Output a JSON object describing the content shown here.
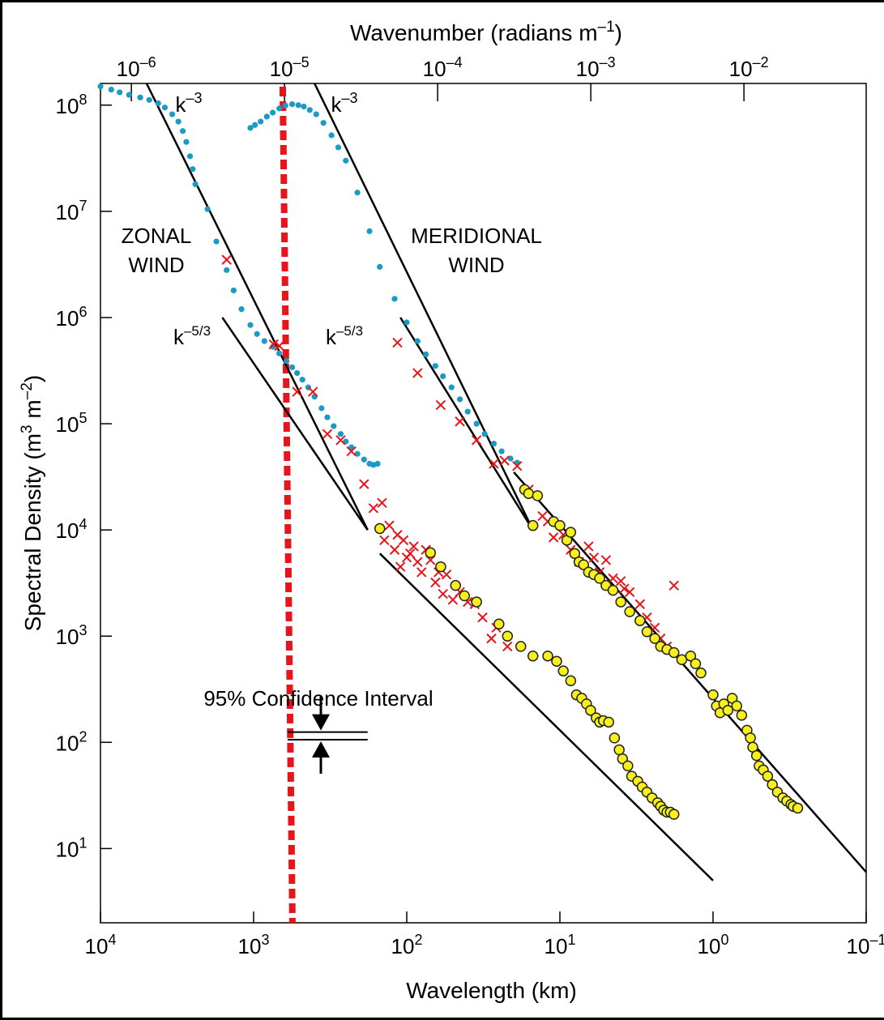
{
  "chart_data": {
    "type": "scatter",
    "title": "",
    "xlabel": "Wavelength (km)",
    "x2label": "Wavenumber (radians m–1)",
    "ylabel": "Spectral Density (m3 m–2)",
    "x_scale": "log (reversed)",
    "y_scale": "log",
    "xlim_km": [
      10000,
      0.1
    ],
    "ylim": [
      2,
      160000000
    ],
    "grid": false,
    "x_ticks": [
      {
        "v": 10000,
        "base": "10",
        "exp": "4"
      },
      {
        "v": 1000,
        "base": "10",
        "exp": "3"
      },
      {
        "v": 100,
        "base": "10",
        "exp": "2"
      },
      {
        "v": 10,
        "base": "10",
        "exp": "1"
      },
      {
        "v": 1,
        "base": "10",
        "exp": "0"
      },
      {
        "v": 0.1,
        "base": "10",
        "exp": "–1"
      }
    ],
    "x2_ticks": [
      {
        "k": 1e-06,
        "base": "10",
        "exp": "–6"
      },
      {
        "k": 1e-05,
        "base": "10",
        "exp": "–5"
      },
      {
        "k": 0.0001,
        "base": "10",
        "exp": "–4"
      },
      {
        "k": 0.001,
        "base": "10",
        "exp": "–3"
      },
      {
        "k": 0.01,
        "base": "10",
        "exp": "–2"
      }
    ],
    "y_ticks": [
      {
        "v": 10,
        "base": "10",
        "exp": "1"
      },
      {
        "v": 100,
        "base": "10",
        "exp": "2"
      },
      {
        "v": 1000,
        "base": "10",
        "exp": "3"
      },
      {
        "v": 10000,
        "base": "10",
        "exp": "4"
      },
      {
        "v": 100000,
        "base": "10",
        "exp": "5"
      },
      {
        "v": 1000000,
        "base": "10",
        "exp": "6"
      },
      {
        "v": 10000000,
        "base": "10",
        "exp": "7"
      },
      {
        "v": 100000000,
        "base": "10",
        "exp": "8"
      }
    ],
    "labels": {
      "zonal": [
        "ZONAL",
        "WIND"
      ],
      "meridional": [
        "MERIDIONAL",
        "WIND"
      ],
      "k3": {
        "base": "k",
        "exp": "–3"
      },
      "k53": {
        "base": "k",
        "exp": "–5/3"
      },
      "confidence": "95% Confidence Interval"
    },
    "reference_line_km": 600,
    "reference_line_color": "#e8141b",
    "fit_lines": [
      {
        "name": "zonal k-3",
        "points": [
          [
            5000,
            160000000
          ],
          [
            180,
            10000
          ]
        ]
      },
      {
        "name": "zonal k-5/3",
        "points": [
          [
            1600,
            1000000
          ],
          [
            180,
            10000
          ]
        ]
      },
      {
        "name": "zonal small-scale",
        "points": [
          [
            150,
            6000
          ],
          [
            1,
            5
          ]
        ]
      },
      {
        "name": "meridional k-3",
        "points": [
          [
            400,
            160000000
          ],
          [
            15,
            10000
          ]
        ]
      },
      {
        "name": "meridional k-5/3",
        "points": [
          [
            110,
            1000000
          ],
          [
            15,
            10000
          ]
        ]
      },
      {
        "name": "meridional small-scale",
        "points": [
          [
            20,
            35000
          ],
          [
            0.1,
            6
          ]
        ]
      }
    ],
    "confidence_interval": {
      "km": [
        600,
        180
      ],
      "values": [
        125,
        106
      ]
    },
    "colors": {
      "blue": "#1a9ac4",
      "red": "#e8141b",
      "yellow": "#f7f01a",
      "line": "#000000"
    },
    "series": [
      {
        "marker": "dot",
        "color": "#1a9ac4",
        "points": [
          [
            10000,
            150000000
          ],
          [
            8500,
            140000000
          ],
          [
            7500,
            132000000
          ],
          [
            6500,
            125000000
          ],
          [
            5500,
            118000000
          ],
          [
            4800,
            112000000
          ],
          [
            4200,
            104000000
          ],
          [
            3800,
            95000000
          ],
          [
            3400,
            82000000
          ],
          [
            3100,
            70000000
          ],
          [
            2900,
            57000000
          ],
          [
            2750,
            45000000
          ],
          [
            2600,
            33000000
          ],
          [
            2500,
            25000000
          ],
          [
            2400,
            18000000
          ],
          [
            2000,
            10500000
          ],
          [
            1750,
            5200000
          ],
          [
            1500,
            2800000
          ],
          [
            1350,
            1800000
          ],
          [
            1200,
            1200000
          ],
          [
            1050,
            850000
          ],
          [
            950,
            700000
          ],
          [
            850,
            600000
          ],
          [
            750,
            530000
          ],
          [
            680,
            460000
          ],
          [
            610,
            390000
          ],
          [
            560,
            340000
          ],
          [
            520,
            300000
          ],
          [
            480,
            260000
          ],
          [
            440,
            220000
          ],
          [
            400,
            180000
          ],
          [
            360,
            140000
          ],
          [
            330,
            115000
          ],
          [
            300,
            95000
          ],
          [
            270,
            80000
          ],
          [
            250,
            68000
          ],
          [
            230,
            60000
          ],
          [
            210,
            52000
          ],
          [
            190,
            46000
          ],
          [
            175,
            42000
          ],
          [
            165,
            41000
          ],
          [
            155,
            42000
          ]
        ]
      },
      {
        "marker": "dot",
        "color": "#1a9ac4",
        "points": [
          [
            1050,
            61000000
          ],
          [
            980,
            65000000
          ],
          [
            900,
            70000000
          ],
          [
            820,
            78000000
          ],
          [
            750,
            85000000
          ],
          [
            680,
            93000000
          ],
          [
            620,
            99000000
          ],
          [
            560,
            102000000
          ],
          [
            510,
            100000000
          ],
          [
            470,
            97000000
          ],
          [
            430,
            90000000
          ],
          [
            390,
            82000000
          ],
          [
            350,
            68000000
          ],
          [
            310,
            52000000
          ],
          [
            280,
            40000000
          ],
          [
            250,
            30000000
          ],
          [
            210,
            15000000
          ],
          [
            175,
            6500000
          ],
          [
            150,
            3000000
          ],
          [
            120,
            1500000
          ],
          [
            100,
            900000
          ],
          [
            85,
            600000
          ],
          [
            75,
            450000
          ],
          [
            65,
            350000
          ],
          [
            58,
            280000
          ],
          [
            51,
            220000
          ],
          [
            45,
            170000
          ],
          [
            40,
            130000
          ],
          [
            35,
            100000
          ],
          [
            31,
            80000
          ],
          [
            27,
            65000
          ],
          [
            24,
            55000
          ],
          [
            21,
            47000
          ],
          [
            19,
            43000
          ]
        ]
      },
      {
        "marker": "x",
        "color": "#e8141b",
        "points": [
          [
            1500,
            3500000
          ],
          [
            740,
            560000
          ],
          [
            680,
            540000
          ],
          [
            520,
            200000
          ],
          [
            410,
            200000
          ],
          [
            330,
            80000
          ],
          [
            270,
            70000
          ],
          [
            230,
            55000
          ],
          [
            190,
            27000
          ],
          [
            165,
            16000
          ],
          [
            145,
            18000
          ],
          [
            130,
            11000
          ],
          [
            115,
            9000
          ],
          [
            105,
            8000
          ],
          [
            95,
            6000
          ],
          [
            90,
            7000
          ],
          [
            85,
            5000
          ],
          [
            80,
            4000
          ],
          [
            75,
            6500
          ],
          [
            70,
            5200
          ],
          [
            65,
            3200
          ],
          [
            62,
            4000
          ],
          [
            58,
            2500
          ],
          [
            55,
            3800
          ],
          [
            50,
            2200
          ],
          [
            45,
            2600
          ],
          [
            40,
            2100
          ],
          [
            36,
            2000
          ],
          [
            32,
            1500
          ],
          [
            28,
            950
          ],
          [
            26,
            1200
          ],
          [
            22,
            800
          ],
          [
            140,
            8000
          ],
          [
            120,
            6500
          ],
          [
            110,
            4500
          ],
          [
            100,
            5500
          ]
        ]
      },
      {
        "marker": "x",
        "color": "#e8141b",
        "points": [
          [
            115,
            580000
          ],
          [
            85,
            300000
          ],
          [
            60,
            150000
          ],
          [
            45,
            105000
          ],
          [
            35,
            70000
          ],
          [
            27,
            42000
          ],
          [
            23,
            45000
          ],
          [
            19,
            40000
          ],
          [
            16,
            24000
          ],
          [
            13,
            13500
          ],
          [
            12,
            12000
          ],
          [
            11,
            8500
          ],
          [
            9.5,
            9000
          ],
          [
            8.5,
            6500
          ],
          [
            7.5,
            5000
          ],
          [
            6.5,
            7000
          ],
          [
            6,
            5500
          ],
          [
            5,
            5200
          ],
          [
            4.5,
            3500
          ],
          [
            4,
            3300
          ],
          [
            3.5,
            2600
          ],
          [
            3,
            2000
          ],
          [
            2.7,
            1500
          ],
          [
            2.4,
            1200
          ],
          [
            2.2,
            950
          ],
          [
            2,
            800
          ],
          [
            1.8,
            3000
          ],
          [
            5.5,
            4000
          ],
          [
            3.8,
            2800
          ]
        ]
      },
      {
        "marker": "circle",
        "color": "#f7f01a",
        "points": [
          [
            150,
            10300
          ],
          [
            70,
            6100
          ],
          [
            60,
            4500
          ],
          [
            48,
            3000
          ],
          [
            42,
            2400
          ],
          [
            35,
            2100
          ],
          [
            25,
            1300
          ],
          [
            22,
            1000
          ],
          [
            18,
            800
          ],
          [
            15,
            650
          ],
          [
            12,
            650
          ],
          [
            10.5,
            580
          ],
          [
            9.5,
            470
          ],
          [
            8.5,
            380
          ],
          [
            7.8,
            280
          ],
          [
            7.2,
            260
          ],
          [
            6.7,
            230
          ],
          [
            6.3,
            200
          ],
          [
            5.8,
            170
          ],
          [
            5.5,
            155
          ],
          [
            5.2,
            160
          ],
          [
            4.8,
            155
          ],
          [
            4.4,
            110
          ],
          [
            4.1,
            85
          ],
          [
            3.9,
            70
          ],
          [
            3.6,
            60
          ],
          [
            3.4,
            48
          ],
          [
            3.1,
            43
          ],
          [
            2.9,
            38
          ],
          [
            2.7,
            34
          ],
          [
            2.5,
            30
          ],
          [
            2.3,
            27
          ],
          [
            2.2,
            25
          ],
          [
            2.1,
            23
          ],
          [
            2,
            22
          ],
          [
            1.9,
            22
          ],
          [
            1.8,
            21
          ]
        ]
      },
      {
        "marker": "circle",
        "color": "#f7f01a",
        "points": [
          [
            15,
            11000
          ],
          [
            17,
            24000
          ],
          [
            16,
            22000
          ],
          [
            14,
            21000
          ],
          [
            11,
            12000
          ],
          [
            10,
            11000
          ],
          [
            9,
            8000
          ],
          [
            8.5,
            9500
          ],
          [
            8,
            6000
          ],
          [
            7.5,
            5000
          ],
          [
            7,
            4700
          ],
          [
            6.5,
            4000
          ],
          [
            6,
            3800
          ],
          [
            5.5,
            3500
          ],
          [
            5,
            3000
          ],
          [
            4.5,
            2700
          ],
          [
            4,
            2100
          ],
          [
            3.5,
            1700
          ],
          [
            3,
            1400
          ],
          [
            2.7,
            1100
          ],
          [
            2.4,
            950
          ],
          [
            2.2,
            800
          ],
          [
            2,
            750
          ],
          [
            1.8,
            700
          ],
          [
            1.6,
            600
          ],
          [
            1.4,
            650
          ],
          [
            1.3,
            550
          ],
          [
            1.2,
            450
          ],
          [
            1,
            280
          ],
          [
            0.95,
            220
          ],
          [
            0.9,
            190
          ],
          [
            0.85,
            230
          ],
          [
            0.8,
            200
          ],
          [
            0.75,
            260
          ],
          [
            0.7,
            220
          ],
          [
            0.65,
            180
          ],
          [
            0.6,
            130
          ],
          [
            0.57,
            110
          ],
          [
            0.55,
            90
          ],
          [
            0.52,
            75
          ],
          [
            0.5,
            60
          ],
          [
            0.47,
            55
          ],
          [
            0.44,
            48
          ],
          [
            0.41,
            40
          ],
          [
            0.38,
            34
          ],
          [
            0.35,
            30
          ],
          [
            0.33,
            28
          ],
          [
            0.31,
            26
          ],
          [
            0.3,
            25
          ],
          [
            0.28,
            24
          ]
        ]
      }
    ]
  }
}
